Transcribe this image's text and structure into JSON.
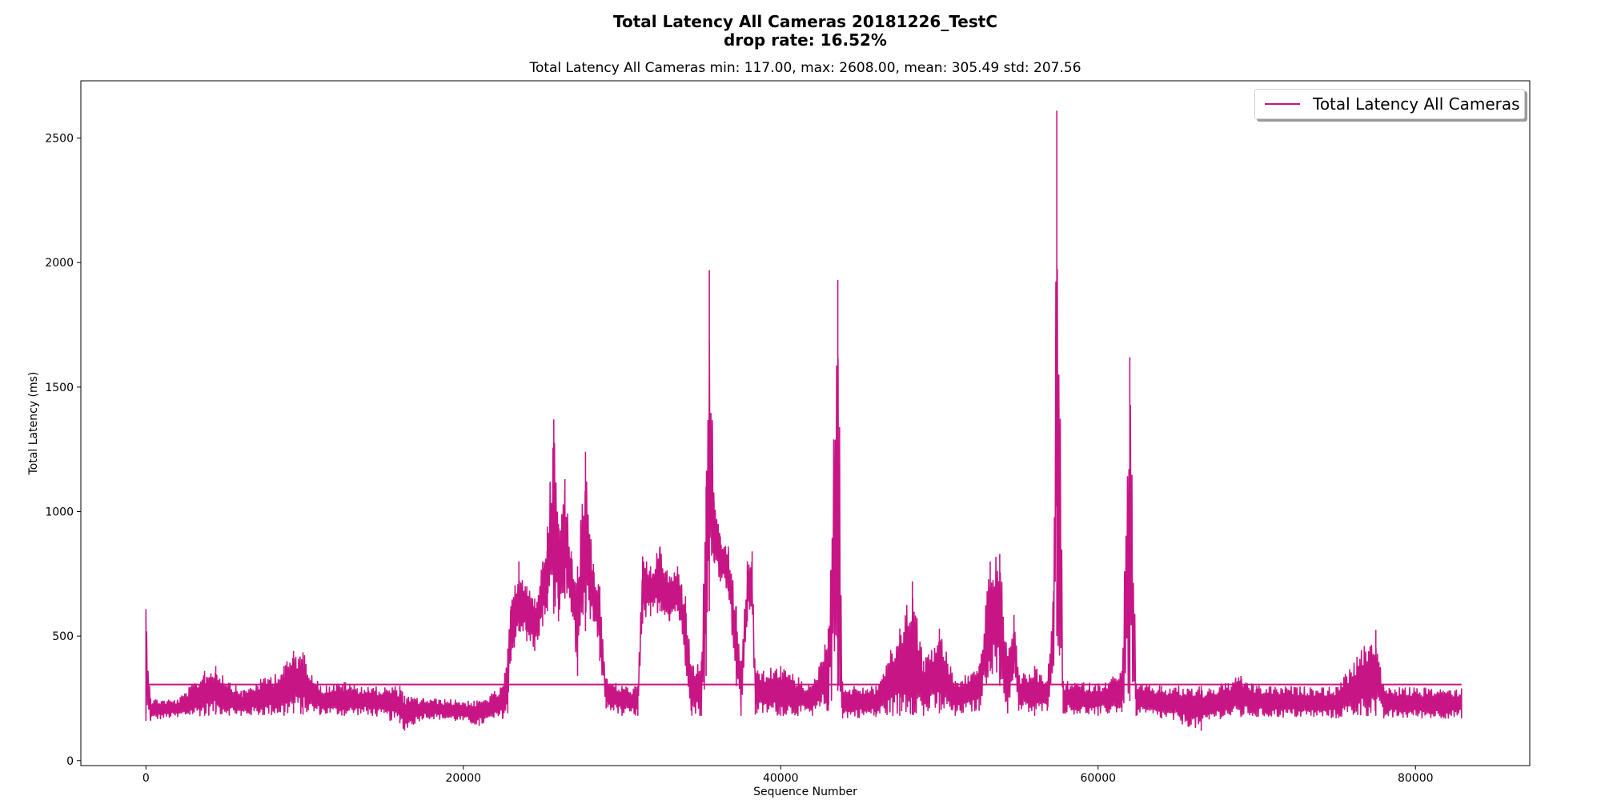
{
  "chart_data": {
    "type": "line",
    "title": "Total Latency All Cameras 20181226_TestC",
    "title_line2": "drop rate: 16.52%",
    "subtitle": "Total Latency All Cameras min: 117.00, max: 2608.00, mean: 305.49 std: 207.56",
    "xlabel": "Sequence Number",
    "ylabel": "Total Latency (ms)",
    "xlim": [
      -4100,
      87200
    ],
    "ylim": [
      -20,
      2730
    ],
    "xticks": [
      0,
      20000,
      40000,
      60000,
      80000
    ],
    "yticks": [
      0,
      500,
      1000,
      1500,
      2000,
      2500
    ],
    "grid": false,
    "legend_position": "top-right",
    "series": [
      {
        "name": "Total Latency All Cameras",
        "color": "#c71585",
        "mean": 305.49,
        "x_end": 82900,
        "envelope": [
          [
            0,
            160,
            608
          ],
          [
            300,
            160,
            250
          ],
          [
            2000,
            175,
            245
          ],
          [
            3700,
            180,
            360
          ],
          [
            4400,
            185,
            380
          ],
          [
            6000,
            180,
            280
          ],
          [
            8700,
            180,
            380
          ],
          [
            9300,
            190,
            440
          ],
          [
            9900,
            185,
            435
          ],
          [
            11000,
            185,
            300
          ],
          [
            12500,
            180,
            315
          ],
          [
            14000,
            185,
            295
          ],
          [
            16000,
            150,
            300
          ],
          [
            16300,
            120,
            260
          ],
          [
            17500,
            170,
            250
          ],
          [
            19500,
            160,
            245
          ],
          [
            21000,
            140,
            240
          ],
          [
            22500,
            170,
            300
          ],
          [
            22800,
            190,
            450
          ],
          [
            23000,
            400,
            620
          ],
          [
            23500,
            520,
            800
          ],
          [
            24000,
            480,
            700
          ],
          [
            24500,
            440,
            650
          ],
          [
            25000,
            540,
            800
          ],
          [
            25300,
            600,
            940
          ],
          [
            25700,
            590,
            1370
          ],
          [
            26000,
            560,
            950
          ],
          [
            26400,
            650,
            1130
          ],
          [
            26800,
            600,
            840
          ],
          [
            27200,
            340,
            780
          ],
          [
            27700,
            520,
            1240
          ],
          [
            28200,
            560,
            790
          ],
          [
            28600,
            400,
            700
          ],
          [
            29000,
            210,
            330
          ],
          [
            30000,
            180,
            300
          ],
          [
            31000,
            180,
            300
          ],
          [
            31300,
            550,
            820
          ],
          [
            31800,
            580,
            780
          ],
          [
            32400,
            600,
            860
          ],
          [
            33000,
            560,
            740
          ],
          [
            33500,
            600,
            780
          ],
          [
            34000,
            380,
            660
          ],
          [
            34400,
            180,
            380
          ],
          [
            35000,
            180,
            400
          ],
          [
            35300,
            340,
            1100
          ],
          [
            35500,
            600,
            1970
          ],
          [
            35800,
            800,
            1040
          ],
          [
            36200,
            720,
            900
          ],
          [
            36700,
            680,
            860
          ],
          [
            37200,
            300,
            620
          ],
          [
            37500,
            180,
            380
          ],
          [
            37900,
            560,
            800
          ],
          [
            38200,
            620,
            840
          ],
          [
            38400,
            185,
            360
          ],
          [
            40000,
            180,
            380
          ],
          [
            42000,
            180,
            300
          ],
          [
            43000,
            200,
            530
          ],
          [
            43600,
            280,
            1930
          ],
          [
            43900,
            170,
            300
          ],
          [
            46000,
            175,
            300
          ],
          [
            47500,
            180,
            530
          ],
          [
            48300,
            185,
            720
          ],
          [
            49000,
            180,
            400
          ],
          [
            50000,
            190,
            530
          ],
          [
            51000,
            180,
            320
          ],
          [
            52500,
            200,
            380
          ],
          [
            53200,
            360,
            800
          ],
          [
            53800,
            300,
            830
          ],
          [
            54300,
            190,
            420
          ],
          [
            54700,
            350,
            585
          ],
          [
            55000,
            200,
            340
          ],
          [
            56000,
            180,
            380
          ],
          [
            56800,
            200,
            320
          ],
          [
            57200,
            380,
            680
          ],
          [
            57400,
            500,
            2610
          ],
          [
            57800,
            190,
            320
          ],
          [
            60000,
            180,
            310
          ],
          [
            61500,
            195,
            360
          ],
          [
            62000,
            240,
            1620
          ],
          [
            62400,
            180,
            310
          ],
          [
            64000,
            170,
            300
          ],
          [
            66500,
            120,
            300
          ],
          [
            67000,
            165,
            290
          ],
          [
            69000,
            175,
            340
          ],
          [
            70000,
            175,
            300
          ],
          [
            75000,
            170,
            295
          ],
          [
            77500,
            180,
            525
          ],
          [
            78000,
            170,
            295
          ],
          [
            82900,
            170,
            290
          ]
        ]
      }
    ]
  }
}
